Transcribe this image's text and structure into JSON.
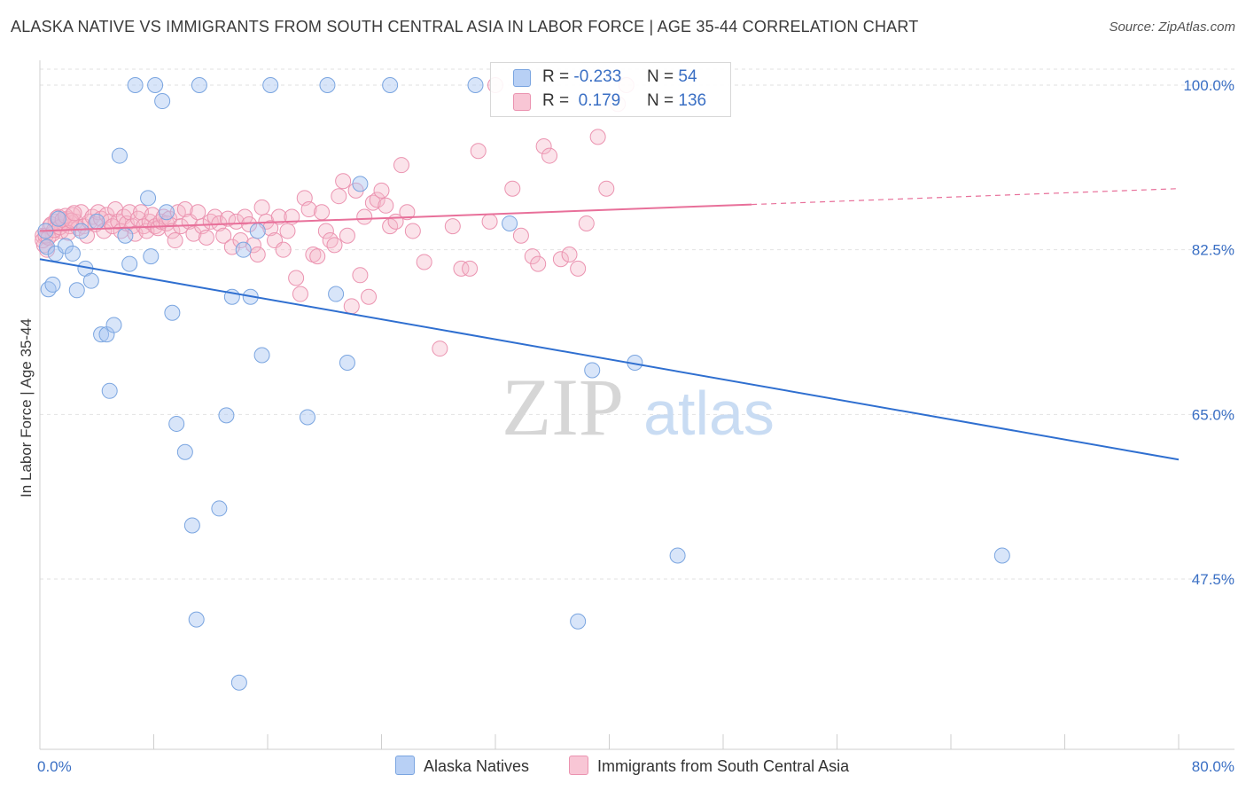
{
  "title": "ALASKA NATIVE VS IMMIGRANTS FROM SOUTH CENTRAL ASIA IN LABOR FORCE | AGE 35-44 CORRELATION CHART",
  "source": "Source: ZipAtlas.com",
  "watermark": {
    "zip": "ZIP",
    "atlas": "atlas"
  },
  "colors": {
    "blue": "#a9c6f2",
    "blue_edge": "#7aa5e0",
    "blue_line": "#2f6fd0",
    "pink": "#f5b8cb",
    "pink_edge": "#eb93b0",
    "pink_line": "#e8709a",
    "axis_text": "#3a6fc4"
  },
  "legend": {
    "rows": [
      {
        "r_label": "R =",
        "r_value": "-0.233",
        "n_label": "N =",
        "n_value": "54"
      },
      {
        "r_label": "R =",
        "r_value": "0.179",
        "n_label": "N =",
        "n_value": "136"
      }
    ]
  },
  "bottom_legend": [
    "Alaska Natives",
    "Immigrants from South Central Asia"
  ],
  "chart_data": {
    "type": "scatter",
    "ylabel": "In Labor Force | Age 35-44",
    "xlim": [
      0,
      80
    ],
    "ylim": [
      34,
      100
    ],
    "x_tick_labels": [
      "0.0%",
      "80.0%"
    ],
    "y_ticks": [
      100,
      82.5,
      65,
      47.5
    ],
    "y_tick_labels": [
      "100.0%",
      "82.5%",
      "65.0%",
      "47.5%"
    ],
    "grid": true,
    "series": [
      {
        "name": "Alaska Natives",
        "trend": {
          "x": [
            0,
            80
          ],
          "y": [
            81.5,
            60.2
          ],
          "dashed_from": null
        },
        "points": [
          [
            0.4,
            84.5
          ],
          [
            0.5,
            82.8
          ],
          [
            0.6,
            78.3
          ],
          [
            0.9,
            78.8
          ],
          [
            1.1,
            82.1
          ],
          [
            1.3,
            85.8
          ],
          [
            1.8,
            82.9
          ],
          [
            2.3,
            82.1
          ],
          [
            2.6,
            78.2
          ],
          [
            2.9,
            84.5
          ],
          [
            3.2,
            80.5
          ],
          [
            3.6,
            79.2
          ],
          [
            4.0,
            85.5
          ],
          [
            4.3,
            73.5
          ],
          [
            4.7,
            73.5
          ],
          [
            4.9,
            67.5
          ],
          [
            5.2,
            74.5
          ],
          [
            5.6,
            92.5
          ],
          [
            6.0,
            84.0
          ],
          [
            6.3,
            81.0
          ],
          [
            6.7,
            100.0
          ],
          [
            7.6,
            88.0
          ],
          [
            7.8,
            81.8
          ],
          [
            8.1,
            100.0
          ],
          [
            8.6,
            98.3
          ],
          [
            8.9,
            86.5
          ],
          [
            9.3,
            75.8
          ],
          [
            9.6,
            64.0
          ],
          [
            10.2,
            61.0
          ],
          [
            10.7,
            53.2
          ],
          [
            11.0,
            43.2
          ],
          [
            11.2,
            100.0
          ],
          [
            12.6,
            55.0
          ],
          [
            13.1,
            64.9
          ],
          [
            13.5,
            77.5
          ],
          [
            14.0,
            36.5
          ],
          [
            14.3,
            82.5
          ],
          [
            14.8,
            77.5
          ],
          [
            15.3,
            84.5
          ],
          [
            15.6,
            71.3
          ],
          [
            16.2,
            100.0
          ],
          [
            18.8,
            64.7
          ],
          [
            20.2,
            100.0
          ],
          [
            20.8,
            77.8
          ],
          [
            21.6,
            70.5
          ],
          [
            22.5,
            89.5
          ],
          [
            24.6,
            100.0
          ],
          [
            30.6,
            100.0
          ],
          [
            33.0,
            85.3
          ],
          [
            37.8,
            43.0
          ],
          [
            38.8,
            69.7
          ],
          [
            41.8,
            70.5
          ],
          [
            44.8,
            50.0
          ],
          [
            67.6,
            50.0
          ]
        ]
      },
      {
        "name": "Immigrants from South Central Asia",
        "trend": {
          "x": [
            0,
            80
          ],
          "y": [
            84.5,
            89.0
          ],
          "dashed_from": 50
        },
        "points": [
          [
            0.2,
            84.0
          ],
          [
            0.3,
            83.0
          ],
          [
            0.5,
            82.5
          ],
          [
            0.7,
            85.0
          ],
          [
            0.9,
            84.2
          ],
          [
            1.1,
            85.5
          ],
          [
            1.3,
            86.0
          ],
          [
            1.5,
            84.5
          ],
          [
            1.7,
            85.3
          ],
          [
            1.9,
            85.8
          ],
          [
            2.1,
            85.0
          ],
          [
            2.3,
            86.2
          ],
          [
            2.5,
            85.5
          ],
          [
            2.7,
            84.8
          ],
          [
            2.9,
            86.5
          ],
          [
            3.1,
            85.0
          ],
          [
            3.3,
            84.0
          ],
          [
            3.5,
            85.5
          ],
          [
            3.7,
            86.0
          ],
          [
            3.9,
            85.2
          ],
          [
            4.1,
            86.5
          ],
          [
            4.3,
            85.8
          ],
          [
            4.5,
            84.5
          ],
          [
            4.7,
            86.2
          ],
          [
            4.9,
            85.5
          ],
          [
            5.1,
            85.0
          ],
          [
            5.3,
            86.8
          ],
          [
            5.5,
            85.5
          ],
          [
            5.7,
            84.5
          ],
          [
            5.9,
            86.0
          ],
          [
            6.1,
            85.3
          ],
          [
            6.3,
            86.5
          ],
          [
            6.5,
            85.0
          ],
          [
            6.7,
            84.2
          ],
          [
            6.9,
            85.8
          ],
          [
            7.1,
            86.5
          ],
          [
            7.3,
            85.0
          ],
          [
            7.5,
            84.5
          ],
          [
            7.7,
            85.5
          ],
          [
            7.9,
            86.2
          ],
          [
            8.1,
            85.0
          ],
          [
            8.3,
            84.8
          ],
          [
            8.5,
            85.5
          ],
          [
            8.7,
            86.0
          ],
          [
            8.9,
            85.3
          ],
          [
            9.1,
            85.8
          ],
          [
            9.3,
            84.5
          ],
          [
            9.5,
            83.5
          ],
          [
            9.7,
            86.5
          ],
          [
            9.9,
            85.0
          ],
          [
            10.2,
            86.8
          ],
          [
            10.5,
            85.5
          ],
          [
            10.8,
            84.2
          ],
          [
            11.1,
            86.5
          ],
          [
            11.4,
            85.0
          ],
          [
            11.7,
            83.8
          ],
          [
            12.0,
            85.5
          ],
          [
            12.3,
            86.0
          ],
          [
            12.6,
            85.3
          ],
          [
            12.9,
            84.0
          ],
          [
            13.2,
            85.8
          ],
          [
            13.5,
            82.8
          ],
          [
            13.8,
            85.5
          ],
          [
            14.1,
            83.5
          ],
          [
            14.4,
            86.0
          ],
          [
            14.7,
            85.2
          ],
          [
            15.0,
            83.0
          ],
          [
            15.3,
            82.0
          ],
          [
            15.6,
            87.0
          ],
          [
            15.9,
            85.5
          ],
          [
            16.2,
            84.8
          ],
          [
            16.5,
            83.5
          ],
          [
            16.8,
            86.0
          ],
          [
            17.1,
            82.5
          ],
          [
            17.4,
            84.5
          ],
          [
            17.7,
            86.0
          ],
          [
            18.0,
            79.5
          ],
          [
            18.3,
            77.8
          ],
          [
            18.6,
            88.0
          ],
          [
            18.9,
            86.8
          ],
          [
            19.2,
            82.0
          ],
          [
            19.5,
            81.8
          ],
          [
            19.8,
            86.5
          ],
          [
            20.1,
            84.5
          ],
          [
            20.4,
            83.5
          ],
          [
            20.7,
            83.0
          ],
          [
            21.0,
            88.2
          ],
          [
            21.3,
            89.8
          ],
          [
            21.6,
            84.0
          ],
          [
            21.9,
            76.5
          ],
          [
            22.2,
            88.8
          ],
          [
            22.5,
            79.8
          ],
          [
            22.8,
            86.0
          ],
          [
            23.1,
            77.5
          ],
          [
            23.4,
            87.5
          ],
          [
            23.7,
            87.8
          ],
          [
            24.0,
            88.8
          ],
          [
            24.3,
            87.2
          ],
          [
            24.6,
            85.0
          ],
          [
            25.0,
            85.5
          ],
          [
            25.4,
            91.5
          ],
          [
            25.8,
            86.5
          ],
          [
            26.2,
            84.5
          ],
          [
            27.0,
            81.2
          ],
          [
            28.1,
            72.0
          ],
          [
            29.0,
            85.0
          ],
          [
            29.6,
            80.5
          ],
          [
            30.2,
            80.5
          ],
          [
            30.8,
            93.0
          ],
          [
            31.6,
            85.5
          ],
          [
            32.0,
            100.0
          ],
          [
            33.2,
            89.0
          ],
          [
            33.8,
            84.0
          ],
          [
            34.6,
            81.8
          ],
          [
            35.0,
            81.0
          ],
          [
            35.4,
            93.5
          ],
          [
            35.8,
            92.5
          ],
          [
            36.6,
            81.5
          ],
          [
            37.2,
            82.0
          ],
          [
            37.8,
            80.5
          ],
          [
            38.4,
            85.3
          ],
          [
            39.2,
            94.5
          ],
          [
            39.8,
            89.0
          ],
          [
            40.6,
            98.0
          ],
          [
            41.2,
            100.0
          ],
          [
            0.2,
            83.5
          ],
          [
            0.4,
            84.0
          ],
          [
            0.6,
            83.8
          ],
          [
            0.8,
            85.2
          ],
          [
            1.0,
            84.6
          ],
          [
            1.2,
            85.9
          ],
          [
            1.4,
            84.9
          ],
          [
            1.6,
            85.7
          ],
          [
            1.8,
            86.1
          ],
          [
            2.0,
            84.3
          ],
          [
            2.2,
            85.6
          ],
          [
            2.4,
            86.4
          ]
        ]
      }
    ]
  }
}
